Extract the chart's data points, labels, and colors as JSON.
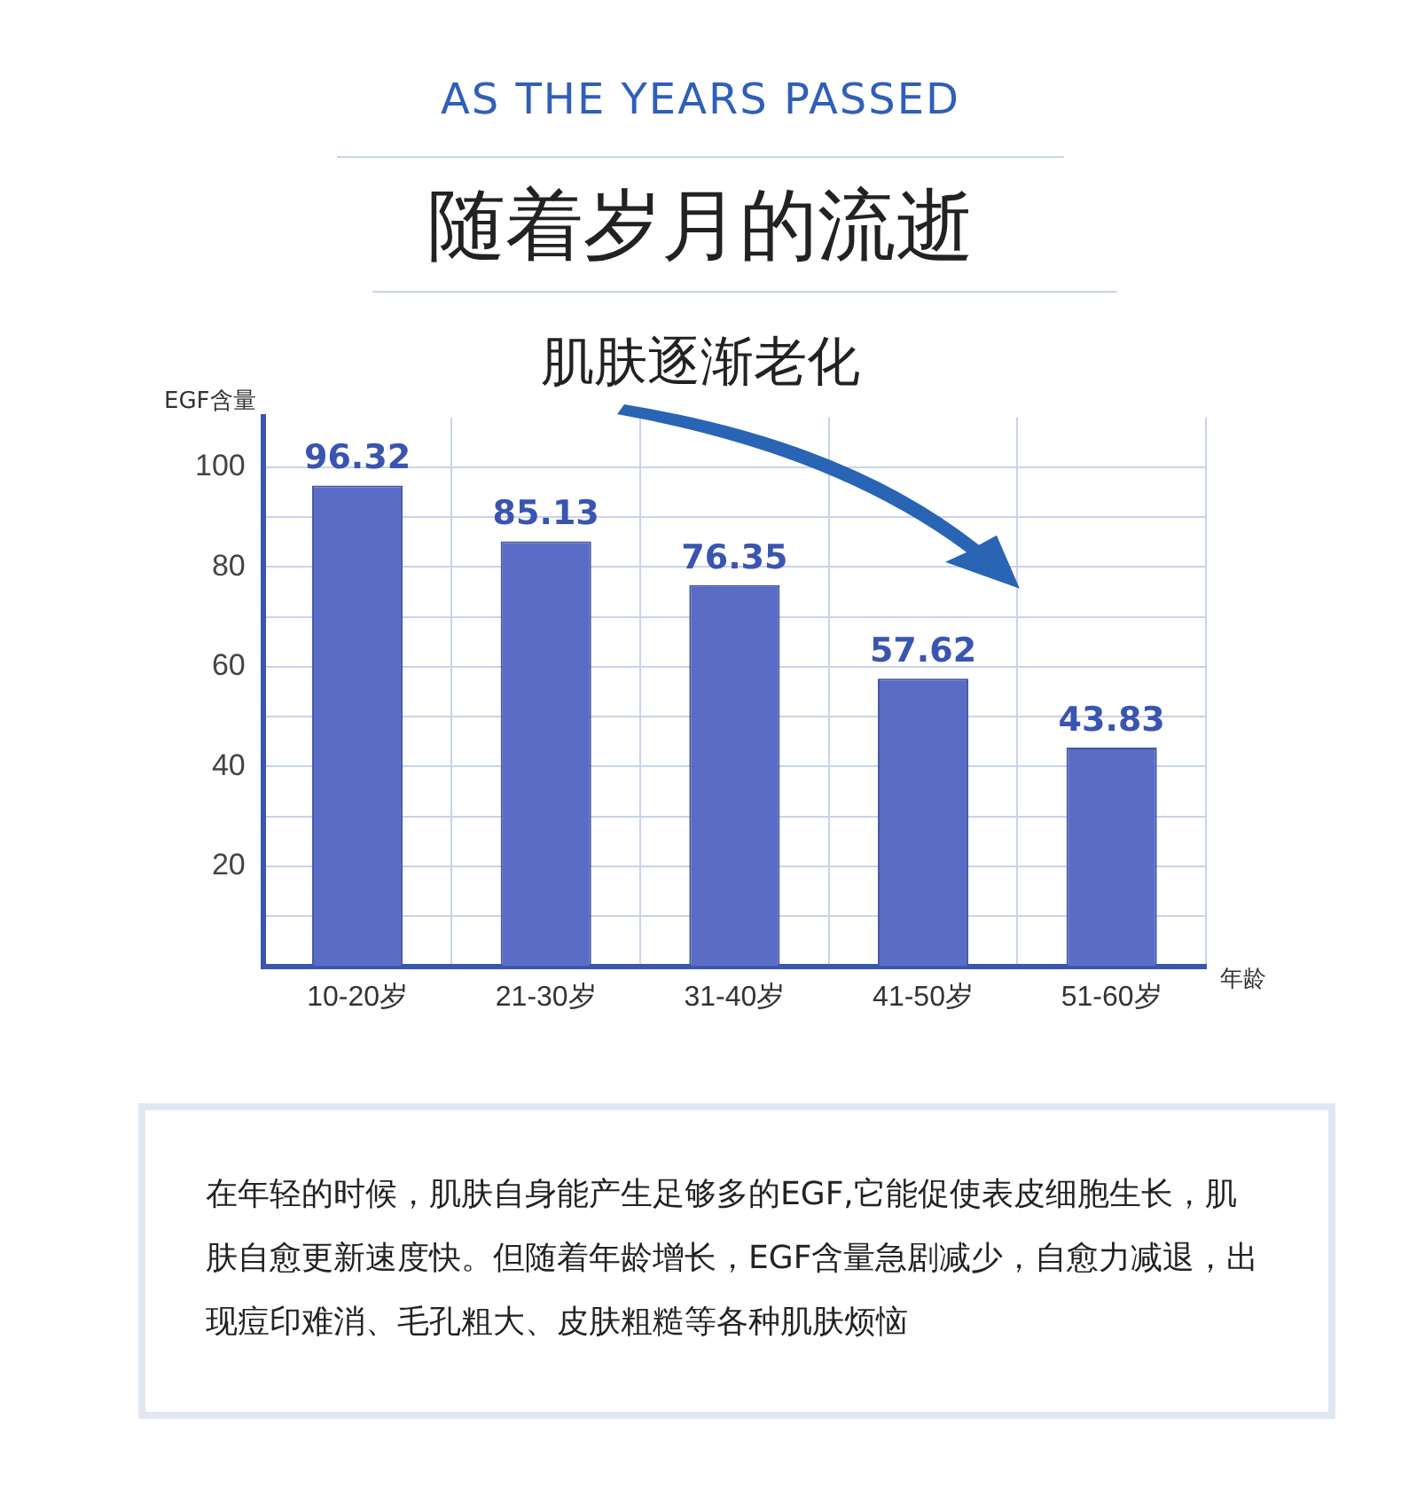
{
  "chart_data": {
    "type": "bar",
    "title": "随着岁月的流逝",
    "subtitle": "肌肤逐渐老化",
    "ylabel": "EGF含量",
    "xlabel": "年龄",
    "categories": [
      "10-20岁",
      "21-30岁",
      "31-40岁",
      "41-50岁",
      "51-60岁"
    ],
    "values": [
      96.32,
      85.13,
      76.35,
      57.62,
      43.83
    ],
    "color": "#5b6cc6",
    "ylim": [
      0,
      110
    ],
    "yticks": [
      {
        "value": 10,
        "label": null
      },
      20,
      {
        "value": 30,
        "label": null
      },
      40,
      {
        "value": 50,
        "label": null
      },
      60,
      {
        "value": 70,
        "label": null
      },
      80,
      {
        "value": 90,
        "label": null
      },
      100
    ],
    "grid": true,
    "data_labels": true,
    "annotations": [
      "AS THE YEARS PASSED",
      "在年轻的时候，肌肤自身能产生足够多的EGF,它能促使表皮细胞生长，肌肤自愈更新速度快。但随着年龄增长，EGF含量急剧减少，自愈力减退，出现痘印难消、毛孔粗大、皮肤粗糙等各种肌肤烦恼"
    ]
  }
}
